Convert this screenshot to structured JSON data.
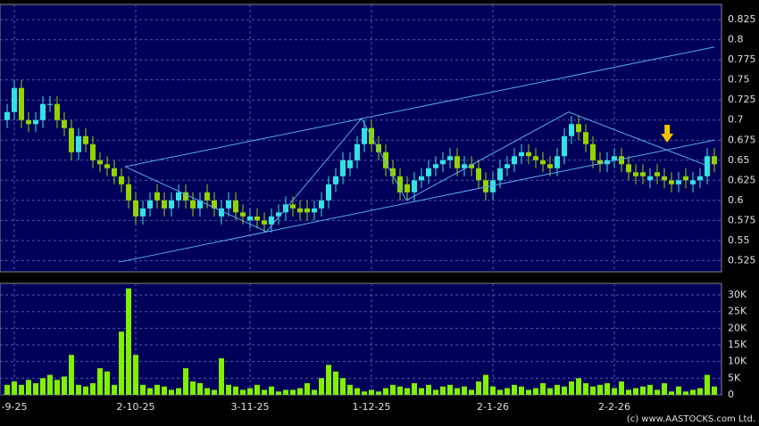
{
  "chart_data": [
    {
      "type": "candlestick",
      "xlim": [
        -1,
        100
      ],
      "xticks": [
        {
          "value": 1,
          "label": "-9-25"
        },
        {
          "value": 18,
          "label": "2-10-25"
        },
        {
          "value": 34,
          "label": "3-11-25"
        },
        {
          "value": 51,
          "label": "1-12-25"
        },
        {
          "value": 68,
          "label": "2-1-26"
        },
        {
          "value": 85,
          "label": "2-2-26"
        }
      ],
      "ylim": [
        0.511,
        0.844
      ],
      "yticks": [
        0.525,
        0.55,
        0.575,
        0.6,
        0.625,
        0.65,
        0.675,
        0.7,
        0.725,
        0.75,
        0.775,
        0.8,
        0.825
      ],
      "grid": true,
      "up_color": "#33e3e3",
      "down_color": "#92d400",
      "open": [
        0.7,
        0.71,
        0.74,
        0.7,
        0.695,
        0.7,
        0.72,
        0.72,
        0.7,
        0.69,
        0.66,
        0.68,
        0.67,
        0.65,
        0.645,
        0.64,
        0.63,
        0.62,
        0.6,
        0.58,
        0.59,
        0.61,
        0.6,
        0.59,
        0.6,
        0.61,
        0.6,
        0.59,
        0.61,
        0.6,
        0.58,
        0.59,
        0.6,
        0.585,
        0.575,
        0.58,
        0.575,
        0.57,
        0.58,
        0.585,
        0.595,
        0.59,
        0.59,
        0.585,
        0.59,
        0.6,
        0.62,
        0.63,
        0.64,
        0.65,
        0.67,
        0.69,
        0.67,
        0.66,
        0.64,
        0.63,
        0.62,
        0.61,
        0.625,
        0.63,
        0.64,
        0.645,
        0.65,
        0.655,
        0.64,
        0.645,
        0.64,
        0.625,
        0.61,
        0.625,
        0.64,
        0.645,
        0.655,
        0.66,
        0.655,
        0.65,
        0.645,
        0.64,
        0.655,
        0.68,
        0.695,
        0.685,
        0.67,
        0.65,
        0.645,
        0.65,
        0.655,
        0.645,
        0.635,
        0.635,
        0.625,
        0.635,
        0.63,
        0.625,
        0.62,
        0.63,
        0.62,
        0.625,
        0.63,
        0.655
      ],
      "high": [
        0.72,
        0.75,
        0.75,
        0.71,
        0.71,
        0.73,
        0.73,
        0.73,
        0.71,
        0.7,
        0.69,
        0.69,
        0.68,
        0.66,
        0.655,
        0.65,
        0.64,
        0.63,
        0.61,
        0.6,
        0.61,
        0.62,
        0.61,
        0.61,
        0.62,
        0.62,
        0.61,
        0.61,
        0.62,
        0.61,
        0.6,
        0.61,
        0.61,
        0.595,
        0.59,
        0.59,
        0.585,
        0.59,
        0.595,
        0.605,
        0.605,
        0.6,
        0.6,
        0.6,
        0.61,
        0.63,
        0.64,
        0.66,
        0.66,
        0.68,
        0.7,
        0.7,
        0.68,
        0.67,
        0.65,
        0.64,
        0.63,
        0.635,
        0.64,
        0.65,
        0.655,
        0.66,
        0.665,
        0.665,
        0.655,
        0.655,
        0.65,
        0.635,
        0.635,
        0.65,
        0.655,
        0.665,
        0.67,
        0.67,
        0.665,
        0.66,
        0.655,
        0.665,
        0.69,
        0.705,
        0.705,
        0.695,
        0.68,
        0.66,
        0.66,
        0.665,
        0.665,
        0.655,
        0.645,
        0.645,
        0.64,
        0.645,
        0.64,
        0.635,
        0.635,
        0.64,
        0.635,
        0.64,
        0.665,
        0.665
      ],
      "low": [
        0.69,
        0.7,
        0.69,
        0.685,
        0.685,
        0.69,
        0.71,
        0.69,
        0.68,
        0.65,
        0.65,
        0.66,
        0.64,
        0.635,
        0.63,
        0.62,
        0.61,
        0.59,
        0.57,
        0.57,
        0.58,
        0.59,
        0.58,
        0.58,
        0.59,
        0.59,
        0.58,
        0.58,
        0.59,
        0.58,
        0.57,
        0.58,
        0.575,
        0.57,
        0.565,
        0.565,
        0.56,
        0.56,
        0.57,
        0.575,
        0.58,
        0.575,
        0.575,
        0.575,
        0.58,
        0.59,
        0.61,
        0.62,
        0.63,
        0.64,
        0.66,
        0.66,
        0.65,
        0.63,
        0.62,
        0.6,
        0.6,
        0.6,
        0.615,
        0.62,
        0.63,
        0.635,
        0.64,
        0.63,
        0.63,
        0.63,
        0.615,
        0.6,
        0.6,
        0.615,
        0.63,
        0.635,
        0.645,
        0.645,
        0.64,
        0.635,
        0.63,
        0.63,
        0.645,
        0.67,
        0.675,
        0.66,
        0.64,
        0.635,
        0.635,
        0.64,
        0.635,
        0.625,
        0.62,
        0.62,
        0.615,
        0.62,
        0.615,
        0.61,
        0.61,
        0.615,
        0.61,
        0.615,
        0.62,
        0.635
      ],
      "close": [
        0.71,
        0.74,
        0.7,
        0.695,
        0.7,
        0.72,
        0.72,
        0.7,
        0.69,
        0.66,
        0.68,
        0.67,
        0.65,
        0.645,
        0.64,
        0.63,
        0.62,
        0.6,
        0.58,
        0.59,
        0.6,
        0.6,
        0.59,
        0.6,
        0.61,
        0.6,
        0.59,
        0.6,
        0.6,
        0.59,
        0.59,
        0.6,
        0.585,
        0.58,
        0.58,
        0.575,
        0.57,
        0.58,
        0.585,
        0.595,
        0.59,
        0.585,
        0.585,
        0.59,
        0.6,
        0.62,
        0.63,
        0.65,
        0.65,
        0.67,
        0.69,
        0.67,
        0.66,
        0.64,
        0.63,
        0.61,
        0.61,
        0.625,
        0.63,
        0.64,
        0.645,
        0.65,
        0.655,
        0.64,
        0.645,
        0.64,
        0.625,
        0.61,
        0.625,
        0.64,
        0.645,
        0.655,
        0.66,
        0.655,
        0.65,
        0.645,
        0.64,
        0.655,
        0.68,
        0.695,
        0.685,
        0.67,
        0.65,
        0.645,
        0.65,
        0.655,
        0.645,
        0.635,
        0.63,
        0.63,
        0.63,
        0.63,
        0.625,
        0.62,
        0.625,
        0.625,
        0.625,
        0.63,
        0.655,
        0.645
      ],
      "lines": [
        {
          "color": "#5aa8f0",
          "x": [
            16.5,
            99
          ],
          "y": [
            0.642,
            0.791
          ]
        },
        {
          "color": "#5aa8f0",
          "x": [
            15.6,
            99
          ],
          "y": [
            0.523,
            0.675
          ]
        },
        {
          "color": "#5aa8f0",
          "x": [
            16.5,
            36.3,
            49.6,
            55.9,
            78.6,
            97.8
          ],
          "y": [
            0.642,
            0.561,
            0.702,
            0.6,
            0.71,
            0.644
          ]
        }
      ],
      "arrow": {
        "x": 92.4,
        "y": 0.672,
        "color": "#f2c200"
      }
    },
    {
      "type": "bar",
      "color": "#80f000",
      "ylim": [
        0,
        33500
      ],
      "yticks": [
        0,
        {
          "value": 5000,
          "label": "5K"
        },
        {
          "value": 10000,
          "label": "10K"
        },
        {
          "value": 15000,
          "label": "15K"
        },
        {
          "value": 20000,
          "label": "20K"
        },
        {
          "value": 25000,
          "label": "25K"
        },
        {
          "value": 30000,
          "label": "30K"
        }
      ],
      "grid": true,
      "values": [
        3000,
        4000,
        3000,
        4500,
        3500,
        5000,
        6000,
        4500,
        5500,
        12000,
        3000,
        2500,
        3500,
        8000,
        7000,
        3000,
        19000,
        32000,
        12000,
        3000,
        2000,
        3000,
        2500,
        1500,
        2000,
        8000,
        4000,
        3500,
        2000,
        1500,
        11000,
        3000,
        2500,
        1500,
        2000,
        3000,
        1500,
        2500,
        1000,
        1500,
        1500,
        2000,
        3500,
        1500,
        5000,
        9000,
        7000,
        5000,
        3000,
        2000,
        1000,
        1500,
        1000,
        2000,
        3000,
        2500,
        2000,
        3500,
        2000,
        3000,
        1500,
        2500,
        3000,
        2000,
        2500,
        1500,
        4000,
        6000,
        2500,
        1500,
        2000,
        3000,
        2500,
        1500,
        2000,
        3500,
        2000,
        3000,
        2500,
        4000,
        5000,
        3500,
        2500,
        3000,
        3500,
        2000,
        4000,
        1500,
        2000,
        2500,
        3000,
        1500,
        3500,
        1000,
        2500,
        1000,
        1500,
        2000,
        6000,
        2500
      ],
      "footer": "(c) www.AASTOCKS.com Ltd."
    }
  ]
}
